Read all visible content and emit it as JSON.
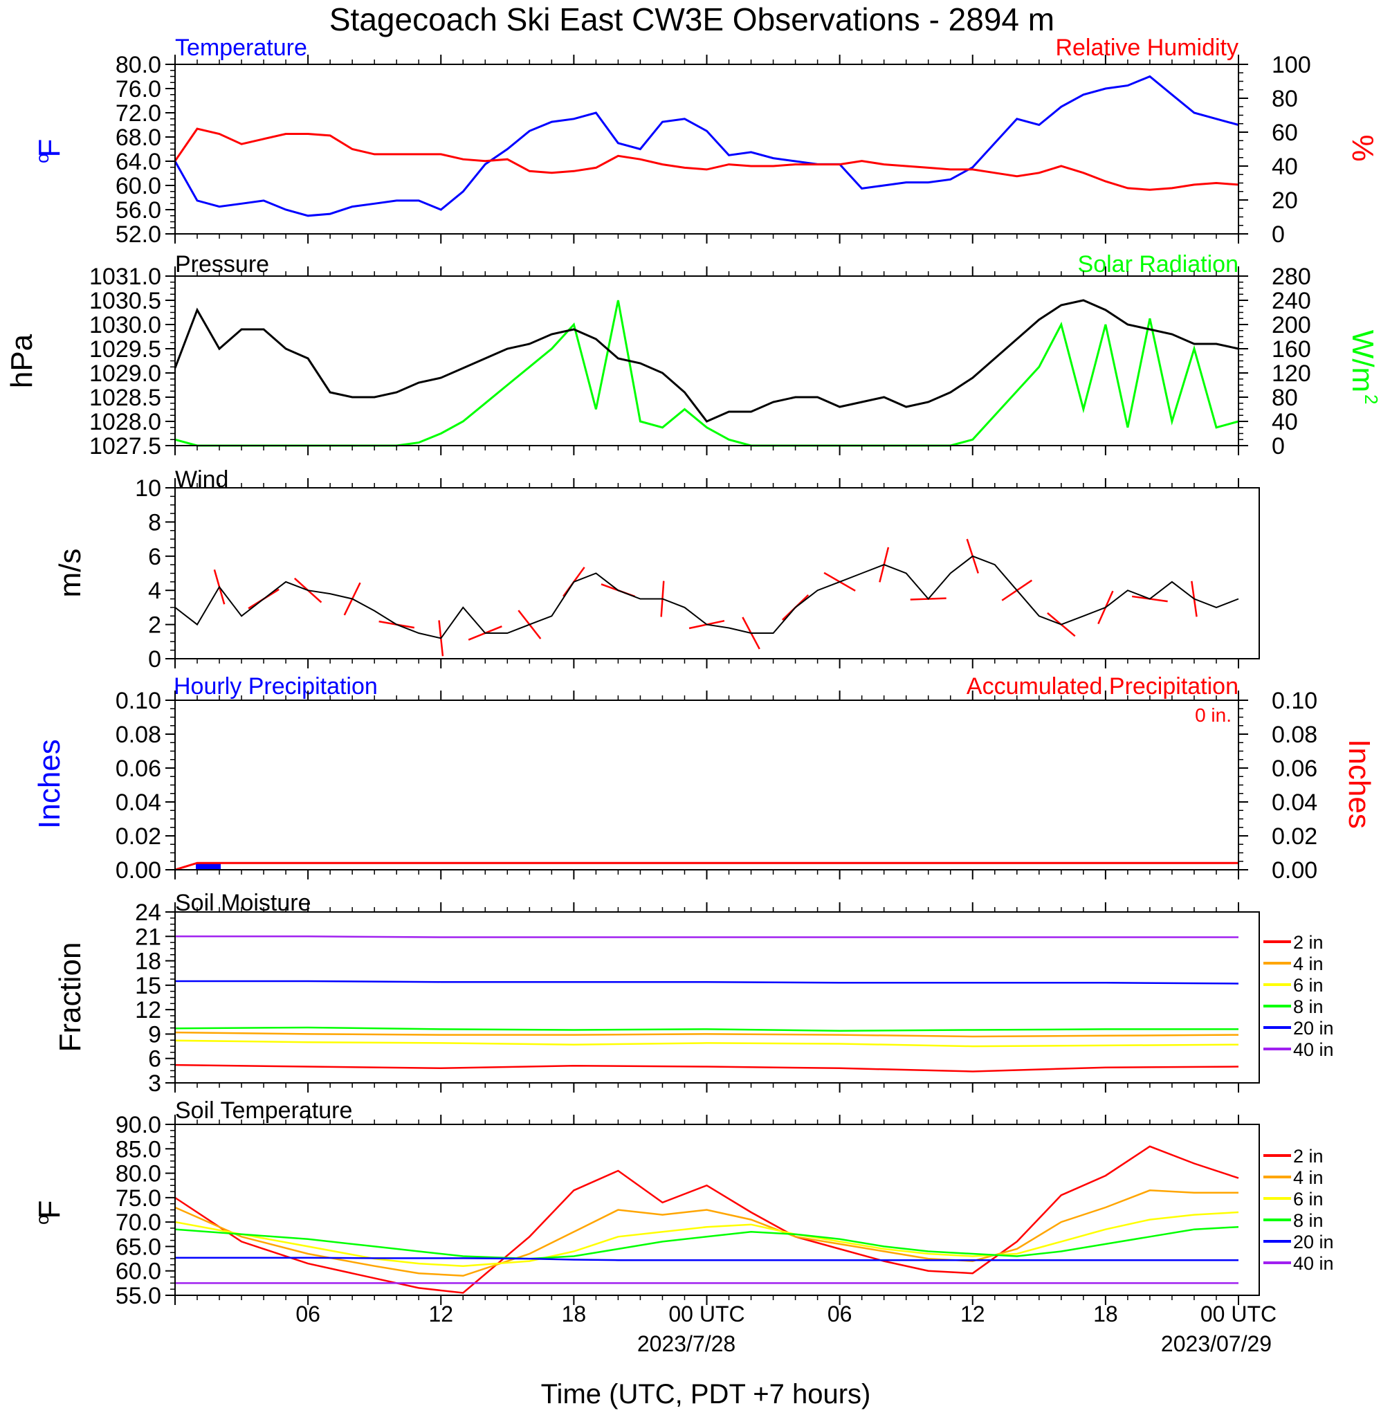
{
  "title": "Stagecoach Ski East CW3E Observations - 2894 m",
  "x_axis": {
    "label": "Time (UTC, PDT +7 hours)",
    "ticks": [
      "06",
      "12",
      "18",
      "00 UTC",
      "06",
      "12",
      "18",
      "00 UTC"
    ],
    "dates": [
      "2023/7/28",
      "2023/07/29"
    ]
  },
  "colors": {
    "blue": "#0000ff",
    "red": "#ff0000",
    "green": "#00ff00",
    "black": "#000000",
    "orange": "#ffa500",
    "yellow": "#ffff00",
    "purple": "#a020f0"
  },
  "panels": {
    "temp_rh": {
      "left_title": "Temperature",
      "right_title": "Relative Humidity",
      "left_unit": "oF",
      "right_unit": "%",
      "left_ticks": [
        "80.0",
        "76.0",
        "72.0",
        "68.0",
        "64.0",
        "60.0",
        "56.0",
        "52.0"
      ],
      "right_ticks": [
        "100",
        "80",
        "60",
        "40",
        "20",
        "0"
      ]
    },
    "pressure_solar": {
      "left_title": "Pressure",
      "right_title": "Solar Radiation",
      "left_unit": "hPa",
      "right_unit": "W/m2",
      "left_ticks": [
        "1031.0",
        "1030.5",
        "1030.0",
        "1029.5",
        "1029.0",
        "1028.5",
        "1028.0",
        "1027.5"
      ],
      "right_ticks": [
        "280",
        "240",
        "200",
        "160",
        "120",
        "80",
        "40",
        "0"
      ]
    },
    "wind": {
      "left_title": "Wind",
      "left_unit": "m/s",
      "left_ticks": [
        "10",
        "8",
        "6",
        "4",
        "2",
        "0"
      ]
    },
    "precip": {
      "left_title": "Hourly Precipitation",
      "right_title": "Accumulated Precipitation",
      "left_unit": "Inches",
      "right_unit": "Inches",
      "annotation": "0 in.",
      "left_ticks": [
        "0.10",
        "0.08",
        "0.06",
        "0.04",
        "0.02",
        "0.00"
      ],
      "right_ticks": [
        "0.10",
        "0.08",
        "0.06",
        "0.04",
        "0.02",
        "0.00"
      ]
    },
    "soil_moisture": {
      "left_title": "Soil Moisture",
      "left_unit": "Fraction",
      "left_ticks": [
        "24",
        "21",
        "18",
        "15",
        "12",
        "9",
        "6",
        "3"
      ],
      "legend": [
        "2 in",
        "4 in",
        "6 in",
        "8 in",
        "20 in",
        "40 in"
      ]
    },
    "soil_temp": {
      "left_title": "Soil Temperature",
      "left_unit": "oF",
      "left_ticks": [
        "90.0",
        "85.0",
        "80.0",
        "75.0",
        "70.0",
        "65.0",
        "60.0",
        "55.0"
      ],
      "legend": [
        "2 in",
        "4 in",
        "6 in",
        "8 in",
        "20 in",
        "40 in"
      ]
    }
  },
  "chart_data": [
    {
      "type": "line",
      "title": "Temperature / Relative Humidity",
      "x": [
        0,
        1,
        2,
        3,
        4,
        5,
        6,
        7,
        8,
        9,
        10,
        11,
        12,
        13,
        14,
        15,
        16,
        17,
        18,
        19,
        20,
        21,
        22,
        23,
        24,
        25,
        26,
        27,
        28,
        29,
        30,
        31,
        32,
        33,
        34,
        35,
        36,
        37,
        38,
        39,
        40,
        41,
        42,
        43,
        44,
        45,
        46,
        47,
        48
      ],
      "xlabel": "Time (UTC, PDT +7 hours)",
      "series": [
        {
          "name": "Temperature",
          "axis": "left",
          "ylim": [
            52,
            80
          ],
          "color": "#0000ff",
          "values": [
            64,
            57.5,
            56.5,
            57,
            57.5,
            56,
            55,
            55.3,
            56.5,
            57,
            57.5,
            57.5,
            56,
            59,
            63.5,
            66,
            69,
            70.5,
            71,
            72,
            67,
            66,
            70.5,
            71,
            69,
            65,
            65.5,
            64.5,
            64,
            63.5,
            63.5,
            59.5,
            60,
            60.5,
            60.5,
            61,
            63,
            67,
            71,
            70,
            73,
            75,
            76,
            76.5,
            78,
            75,
            72,
            71,
            70
          ]
        },
        {
          "name": "Relative Humidity",
          "axis": "right",
          "ylim": [
            0,
            100
          ],
          "color": "#ff0000",
          "values": [
            43,
            62,
            59,
            53,
            56,
            59,
            59,
            58,
            50,
            47,
            47,
            47,
            47,
            44,
            43,
            44,
            37,
            36,
            37,
            39,
            46,
            44,
            41,
            39,
            38,
            41,
            40,
            40,
            41,
            41,
            41,
            43,
            41,
            40,
            39,
            38,
            38,
            36,
            34,
            36,
            40,
            36,
            31,
            27,
            26,
            27,
            29,
            30,
            29
          ]
        }
      ]
    },
    {
      "type": "line",
      "title": "Pressure / Solar Radiation",
      "x": [
        0,
        1,
        2,
        3,
        4,
        5,
        6,
        7,
        8,
        9,
        10,
        11,
        12,
        13,
        14,
        15,
        16,
        17,
        18,
        19,
        20,
        21,
        22,
        23,
        24,
        25,
        26,
        27,
        28,
        29,
        30,
        31,
        32,
        33,
        34,
        35,
        36,
        37,
        38,
        39,
        40,
        41,
        42,
        43,
        44,
        45,
        46,
        47,
        48
      ],
      "series": [
        {
          "name": "Pressure",
          "axis": "left",
          "ylim": [
            1027.5,
            1031.0
          ],
          "color": "#000000",
          "values": [
            1029.1,
            1030.3,
            1029.5,
            1029.9,
            1029.9,
            1029.5,
            1029.3,
            1028.6,
            1028.5,
            1028.5,
            1028.6,
            1028.8,
            1028.9,
            1029.1,
            1029.3,
            1029.5,
            1029.6,
            1029.8,
            1029.9,
            1029.7,
            1029.3,
            1029.2,
            1029.0,
            1028.6,
            1028.0,
            1028.2,
            1028.2,
            1028.4,
            1028.5,
            1028.5,
            1028.3,
            1028.4,
            1028.5,
            1028.3,
            1028.4,
            1028.6,
            1028.9,
            1029.3,
            1029.7,
            1030.1,
            1030.4,
            1030.5,
            1030.3,
            1030.0,
            1029.9,
            1029.8,
            1029.6,
            1029.6,
            1029.5
          ]
        },
        {
          "name": "Solar Radiation",
          "axis": "right",
          "ylim": [
            0,
            280
          ],
          "color": "#00ff00",
          "values": [
            10,
            0,
            0,
            0,
            0,
            0,
            0,
            0,
            0,
            0,
            0,
            5,
            20,
            40,
            70,
            100,
            130,
            160,
            200,
            60,
            240,
            40,
            30,
            60,
            30,
            10,
            0,
            0,
            0,
            0,
            0,
            0,
            0,
            0,
            0,
            0,
            10,
            50,
            90,
            130,
            200,
            60,
            200,
            30,
            210,
            40,
            160,
            30,
            40
          ]
        }
      ]
    },
    {
      "type": "line",
      "title": "Wind",
      "x": [
        0,
        1,
        2,
        3,
        4,
        5,
        6,
        7,
        8,
        9,
        10,
        11,
        12,
        13,
        14,
        15,
        16,
        17,
        18,
        19,
        20,
        21,
        22,
        23,
        24,
        25,
        26,
        27,
        28,
        29,
        30,
        31,
        32,
        33,
        34,
        35,
        36,
        37,
        38,
        39,
        40,
        41,
        42,
        43,
        44,
        45,
        46,
        47,
        48
      ],
      "series": [
        {
          "name": "Wind speed",
          "ylim": [
            0,
            10
          ],
          "unit": "m/s",
          "color": "#000000",
          "values": [
            3,
            2,
            4.2,
            2.5,
            3.5,
            4.5,
            4,
            3.8,
            3.5,
            2.8,
            2,
            1.5,
            1.2,
            3,
            1.5,
            1.5,
            2,
            2.5,
            4.5,
            5,
            4,
            3.5,
            3.5,
            3,
            2,
            1.8,
            1.5,
            1.5,
            3,
            4,
            4.5,
            5,
            5.5,
            5,
            3.5,
            5,
            6,
            5.5,
            4,
            2.5,
            2,
            2.5,
            3,
            4,
            3.5,
            4.5,
            3.5,
            3,
            3.5
          ]
        }
      ]
    },
    {
      "type": "bar",
      "title": "Hourly / Accumulated Precipitation",
      "x": [
        0,
        1,
        2,
        3,
        4,
        5,
        6,
        7,
        8,
        9,
        10,
        11,
        12,
        13,
        14,
        15,
        16,
        17,
        18,
        19,
        20,
        21,
        22,
        23,
        24,
        25,
        26,
        27,
        28,
        29,
        30,
        31,
        32,
        33,
        34,
        35,
        36,
        37,
        38,
        39,
        40,
        41,
        42,
        43,
        44,
        45,
        46,
        47,
        48
      ],
      "series": [
        {
          "name": "Hourly Precipitation",
          "axis": "left",
          "ylim": [
            0,
            0.1
          ],
          "color": "#0000ff",
          "values": [
            0,
            0.004,
            0,
            0,
            0,
            0,
            0,
            0,
            0,
            0,
            0,
            0,
            0,
            0,
            0,
            0,
            0,
            0,
            0,
            0,
            0,
            0,
            0,
            0,
            0,
            0,
            0,
            0,
            0,
            0,
            0,
            0,
            0,
            0,
            0,
            0,
            0,
            0,
            0,
            0,
            0,
            0,
            0,
            0,
            0,
            0,
            0,
            0,
            0
          ]
        },
        {
          "name": "Accumulated Precipitation",
          "axis": "right",
          "ylim": [
            0,
            0.1
          ],
          "color": "#ff0000",
          "values": [
            0,
            0.004,
            0.004,
            0.004,
            0.004,
            0.004,
            0.004,
            0.004,
            0.004,
            0.004,
            0.004,
            0.004,
            0.004,
            0.004,
            0.004,
            0.004,
            0.004,
            0.004,
            0.004,
            0.004,
            0.004,
            0.004,
            0.004,
            0.004,
            0.004,
            0.004,
            0.004,
            0.004,
            0.004,
            0.004,
            0.004,
            0.004,
            0.004,
            0.004,
            0.004,
            0.004,
            0.004,
            0.004,
            0.004,
            0.004,
            0.004,
            0.004,
            0.004,
            0.004,
            0.004,
            0.004,
            0.004,
            0.004,
            0.004
          ]
        }
      ]
    },
    {
      "type": "line",
      "title": "Soil Moisture",
      "x": [
        0,
        6,
        12,
        18,
        24,
        30,
        36,
        42,
        48
      ],
      "series": [
        {
          "name": "2 in",
          "ylim": [
            3,
            24
          ],
          "color": "#ff0000",
          "values": [
            5.2,
            5.0,
            4.8,
            5.1,
            5.0,
            4.8,
            4.4,
            4.9,
            5.0
          ]
        },
        {
          "name": "4 in",
          "ylim": [
            3,
            24
          ],
          "color": "#ffa500",
          "values": [
            9.2,
            9.0,
            8.9,
            8.9,
            9.0,
            8.9,
            8.7,
            8.8,
            8.9
          ]
        },
        {
          "name": "6 in",
          "ylim": [
            3,
            24
          ],
          "color": "#ffff00",
          "values": [
            8.2,
            8.0,
            7.9,
            7.7,
            7.9,
            7.8,
            7.5,
            7.6,
            7.7
          ]
        },
        {
          "name": "8 in",
          "ylim": [
            3,
            24
          ],
          "color": "#00ff00",
          "values": [
            9.7,
            9.8,
            9.6,
            9.5,
            9.6,
            9.4,
            9.5,
            9.6,
            9.6
          ]
        },
        {
          "name": "20 in",
          "ylim": [
            3,
            24
          ],
          "color": "#0000ff",
          "values": [
            15.5,
            15.5,
            15.4,
            15.4,
            15.4,
            15.3,
            15.3,
            15.3,
            15.2
          ]
        },
        {
          "name": "40 in",
          "ylim": [
            3,
            24
          ],
          "color": "#a020f0",
          "values": [
            21.0,
            21.0,
            20.9,
            20.9,
            20.9,
            20.9,
            20.9,
            20.9,
            20.9
          ]
        }
      ]
    },
    {
      "type": "line",
      "title": "Soil Temperature",
      "x": [
        0,
        3,
        6,
        9,
        11,
        13,
        16,
        18,
        20,
        22,
        24,
        26,
        28,
        30,
        32,
        34,
        36,
        38,
        40,
        42,
        44,
        46,
        48
      ],
      "series": [
        {
          "name": "2 in",
          "ylim": [
            55,
            90
          ],
          "color": "#ff0000",
          "values": [
            75,
            66,
            61.5,
            58.5,
            56.5,
            55.5,
            67,
            76.5,
            80.5,
            74,
            77.5,
            72,
            67,
            64.5,
            62,
            60,
            59.5,
            66,
            75.5,
            79.5,
            85.5,
            82,
            79
          ]
        },
        {
          "name": "4 in",
          "ylim": [
            55,
            90
          ],
          "color": "#ffa500",
          "values": [
            73,
            67,
            63.5,
            61,
            59.5,
            59,
            63.5,
            68,
            72.5,
            71.5,
            72.5,
            70.5,
            67,
            65.5,
            64,
            62.5,
            62,
            64.5,
            70,
            73,
            76.5,
            76,
            76
          ]
        },
        {
          "name": "6 in",
          "ylim": [
            55,
            90
          ],
          "color": "#ffff00",
          "values": [
            70,
            67.5,
            65,
            62.5,
            61.5,
            61,
            62,
            64,
            67,
            68,
            69,
            69.5,
            67.5,
            66,
            64.5,
            63.5,
            63,
            63.5,
            66,
            68.5,
            70.5,
            71.5,
            72
          ]
        },
        {
          "name": "8 in",
          "ylim": [
            55,
            90
          ],
          "color": "#00ff00",
          "values": [
            68.5,
            67.5,
            66.5,
            65,
            64,
            63,
            62.5,
            63,
            64.5,
            66,
            67,
            68,
            67.5,
            66.5,
            65,
            64,
            63.5,
            63,
            64,
            65.5,
            67,
            68.5,
            69
          ]
        },
        {
          "name": "20 in",
          "ylim": [
            55,
            90
          ],
          "color": "#0000ff",
          "values": [
            62.7,
            62.7,
            62.7,
            62.6,
            62.6,
            62.6,
            62.5,
            62.3,
            62.2,
            62.2,
            62.2,
            62.2,
            62.2,
            62.2,
            62.2,
            62.2,
            62.2,
            62.2,
            62.2,
            62.2,
            62.2,
            62.2,
            62.2
          ]
        },
        {
          "name": "40 in",
          "ylim": [
            55,
            90
          ],
          "color": "#a020f0",
          "values": [
            57.5,
            57.5,
            57.5,
            57.5,
            57.5,
            57.5,
            57.5,
            57.5,
            57.5,
            57.5,
            57.5,
            57.5,
            57.5,
            57.5,
            57.5,
            57.5,
            57.5,
            57.5,
            57.5,
            57.5,
            57.5,
            57.5,
            57.5
          ]
        }
      ]
    }
  ]
}
